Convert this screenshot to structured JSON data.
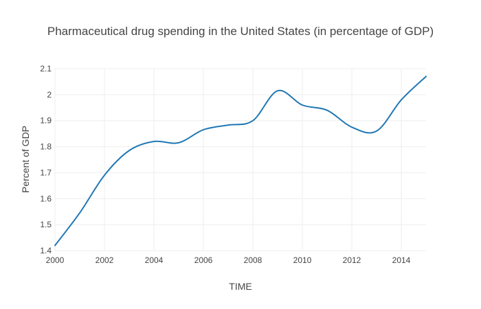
{
  "chart_data": {
    "type": "line",
    "title": "Pharmaceutical drug spending in the United States (in percentage of GDP)",
    "xlabel": "TIME",
    "ylabel": "Percent of GDP",
    "x": [
      2000,
      2001,
      2002,
      2003,
      2004,
      2005,
      2006,
      2007,
      2008,
      2009,
      2010,
      2011,
      2012,
      2013,
      2014,
      2015
    ],
    "series": [
      {
        "name": "",
        "color": "#1f77b4",
        "values": [
          1.42,
          1.545,
          1.69,
          1.785,
          1.82,
          1.815,
          1.865,
          1.883,
          1.9,
          2.015,
          1.96,
          1.94,
          1.875,
          1.86,
          1.98,
          2.07
        ]
      }
    ],
    "xlim": [
      2000,
      2015
    ],
    "ylim": [
      1.4,
      2.1
    ],
    "xticks": [
      "2000",
      "2002",
      "2004",
      "2006",
      "2008",
      "2010",
      "2012",
      "2014"
    ],
    "xtick_values": [
      2000,
      2002,
      2004,
      2006,
      2008,
      2010,
      2012,
      2014
    ],
    "yticks": [
      "1.4",
      "1.5",
      "1.6",
      "1.7",
      "1.8",
      "1.9",
      "2",
      "2.1"
    ],
    "ytick_values": [
      1.4,
      1.5,
      1.6,
      1.7,
      1.8,
      1.9,
      2.0,
      2.1
    ],
    "grid": true,
    "legend": "none"
  }
}
